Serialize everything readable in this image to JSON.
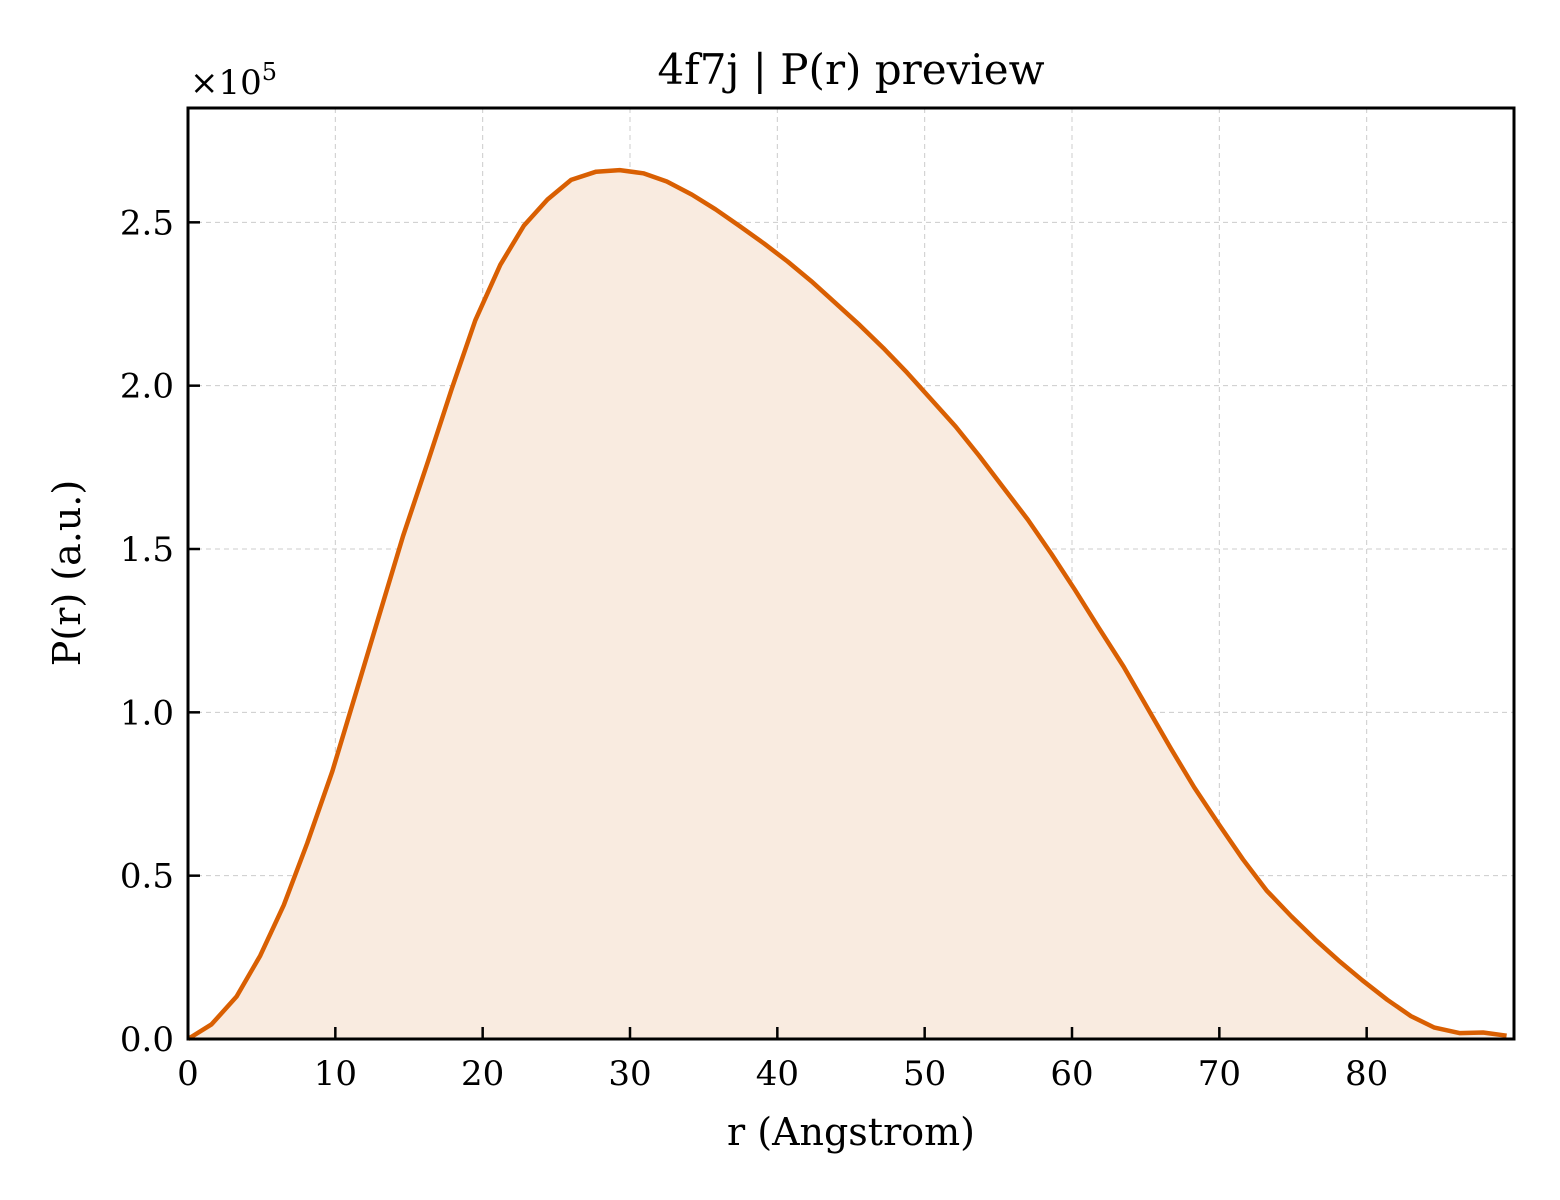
{
  "chart_data": {
    "type": "area",
    "title": "4f7j | P(r) preview",
    "xlabel": "r (Angstrom)",
    "ylabel": "P(r) (a.u.)",
    "y_offset_label": "×10",
    "y_offset_exponent": "5",
    "xlim": [
      0,
      90
    ],
    "ylim": [
      0,
      2.85
    ],
    "y_scale_multiplier": 100000,
    "x_ticks": [
      0,
      10,
      20,
      30,
      40,
      50,
      60,
      70,
      80
    ],
    "x_tick_labels": [
      "0",
      "10",
      "20",
      "30",
      "40",
      "50",
      "60",
      "70",
      "80"
    ],
    "y_ticks": [
      0.0,
      0.5,
      1.0,
      1.5,
      2.0,
      2.5
    ],
    "y_tick_labels": [
      "0.0",
      "0.5",
      "1.0",
      "1.5",
      "2.0",
      "2.5"
    ],
    "grid": true,
    "line_color": "#d95f02",
    "fill_color": "#f9ebe0",
    "series": [
      {
        "x": [
          0,
          1.6,
          3.3,
          4.9,
          6.5,
          8.1,
          9.8,
          11.4,
          13.0,
          14.6,
          16.3,
          17.9,
          19.5,
          21.2,
          22.8,
          24.4,
          26.0,
          27.7,
          29.3,
          30.9,
          32.5,
          34.2,
          35.8,
          37.4,
          39.1,
          40.7,
          42.3,
          43.9,
          45.6,
          47.2,
          48.8,
          50.4,
          52.1,
          53.7,
          55.3,
          57.0,
          58.6,
          60.2,
          61.8,
          63.5,
          65.1,
          66.7,
          68.3,
          70.0,
          71.6,
          73.2,
          74.9,
          76.5,
          78.1,
          79.7,
          81.4,
          83.0,
          84.6,
          86.3,
          87.9,
          89.5
        ],
        "y": [
          0.0,
          0.045,
          0.13,
          0.255,
          0.41,
          0.6,
          0.82,
          1.06,
          1.3,
          1.54,
          1.77,
          1.99,
          2.2,
          2.37,
          2.49,
          2.57,
          2.63,
          2.655,
          2.66,
          2.65,
          2.625,
          2.585,
          2.54,
          2.49,
          2.435,
          2.38,
          2.32,
          2.255,
          2.185,
          2.115,
          2.04,
          1.96,
          1.875,
          1.785,
          1.69,
          1.59,
          1.485,
          1.375,
          1.26,
          1.14,
          1.015,
          0.89,
          0.77,
          0.655,
          0.55,
          0.455,
          0.375,
          0.305,
          0.24,
          0.18,
          0.12,
          0.07,
          0.035,
          0.018,
          0.02,
          0.01
        ]
      }
    ]
  }
}
